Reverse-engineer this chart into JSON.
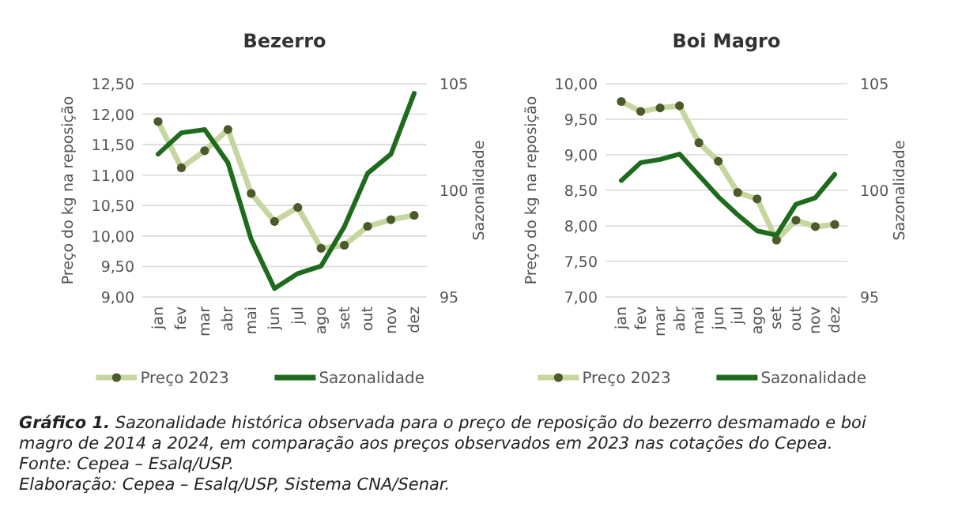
{
  "chart_data": [
    {
      "type": "line",
      "title": "Bezerro",
      "ylabel": "Preço do kg na reposição",
      "y2label": "Sazonalidade",
      "categories": [
        "jan",
        "fev",
        "mar",
        "abr",
        "mai",
        "jun",
        "jul",
        "ago",
        "set",
        "out",
        "nov",
        "dez"
      ],
      "series": [
        {
          "name": "Preço 2023",
          "color": "#c5d6a0",
          "marker": "circle",
          "values": [
            11.88,
            11.12,
            11.4,
            11.75,
            10.7,
            10.24,
            10.47,
            9.8,
            9.85,
            10.16,
            10.27,
            10.34
          ]
        },
        {
          "name": "Sazonalidade",
          "color": "#1e6b1e",
          "axis": "y2",
          "marker": "none",
          "values": [
            101.7,
            102.7,
            102.85,
            101.3,
            97.7,
            95.4,
            96.1,
            96.45,
            98.3,
            100.8,
            101.7,
            104.55
          ]
        }
      ],
      "ylim": [
        9,
        12.5
      ],
      "yticks": [
        {
          "value": 9,
          "label": "9,00"
        },
        {
          "value": 9.5,
          "label": "9,50"
        },
        {
          "value": 10,
          "label": "10,00"
        },
        {
          "value": 10.5,
          "label": "10,50"
        },
        {
          "value": 11,
          "label": "11,00"
        },
        {
          "value": 11.5,
          "label": "11,50"
        },
        {
          "value": 12,
          "label": "12,00"
        },
        {
          "value": 12.5,
          "label": "12,50"
        }
      ],
      "y2lim": [
        95,
        105
      ],
      "y2ticks": [
        95,
        100,
        105
      ],
      "grid": "y",
      "legend": "bottom",
      "annotations": [
        "Gráfico 1.",
        "Sazonalidade histórica observada para o preço de reposição do bezerro desmamado e boi magro de 2014 a 2024, em comparação aos preços observados em 2023 nas cotações do Cepea.",
        "Fonte: Cepea – Esalq/USP.",
        "Elaboração: Cepea – Esalq/USP, Sistema CNA/Senar."
      ]
    },
    {
      "type": "line",
      "title": "Boi Magro",
      "ylabel": "Preço do kg na reposição",
      "y2label": "Sazonalidade",
      "categories": [
        "jan",
        "fev",
        "mar",
        "abr",
        "mai",
        "jun",
        "jul",
        "ago",
        "set",
        "out",
        "nov",
        "dez"
      ],
      "series": [
        {
          "name": "Preço 2023",
          "color": "#c5d6a0",
          "marker": "circle",
          "values": [
            9.75,
            9.61,
            9.66,
            9.69,
            9.17,
            8.91,
            8.47,
            8.38,
            7.8,
            8.08,
            7.99,
            8.02
          ]
        },
        {
          "name": "Sazonalidade",
          "color": "#1e6b1e",
          "axis": "y2",
          "marker": "none",
          "values": [
            100.46,
            101.3,
            101.45,
            101.7,
            100.7,
            99.7,
            98.85,
            98.1,
            97.9,
            99.35,
            99.65,
            100.75
          ]
        }
      ],
      "ylim": [
        7,
        10
      ],
      "yticks": [
        {
          "value": 7,
          "label": "7,00"
        },
        {
          "value": 7.5,
          "label": "7,50"
        },
        {
          "value": 8,
          "label": "8,00"
        },
        {
          "value": 8.5,
          "label": "8,50"
        },
        {
          "value": 9,
          "label": "9,00"
        },
        {
          "value": 9.5,
          "label": "9,50"
        },
        {
          "value": 10,
          "label": "10,00"
        }
      ],
      "y2lim": [
        95,
        105
      ],
      "y2ticks": [
        95,
        100,
        105
      ],
      "grid": "y",
      "legend": "bottom"
    }
  ]
}
